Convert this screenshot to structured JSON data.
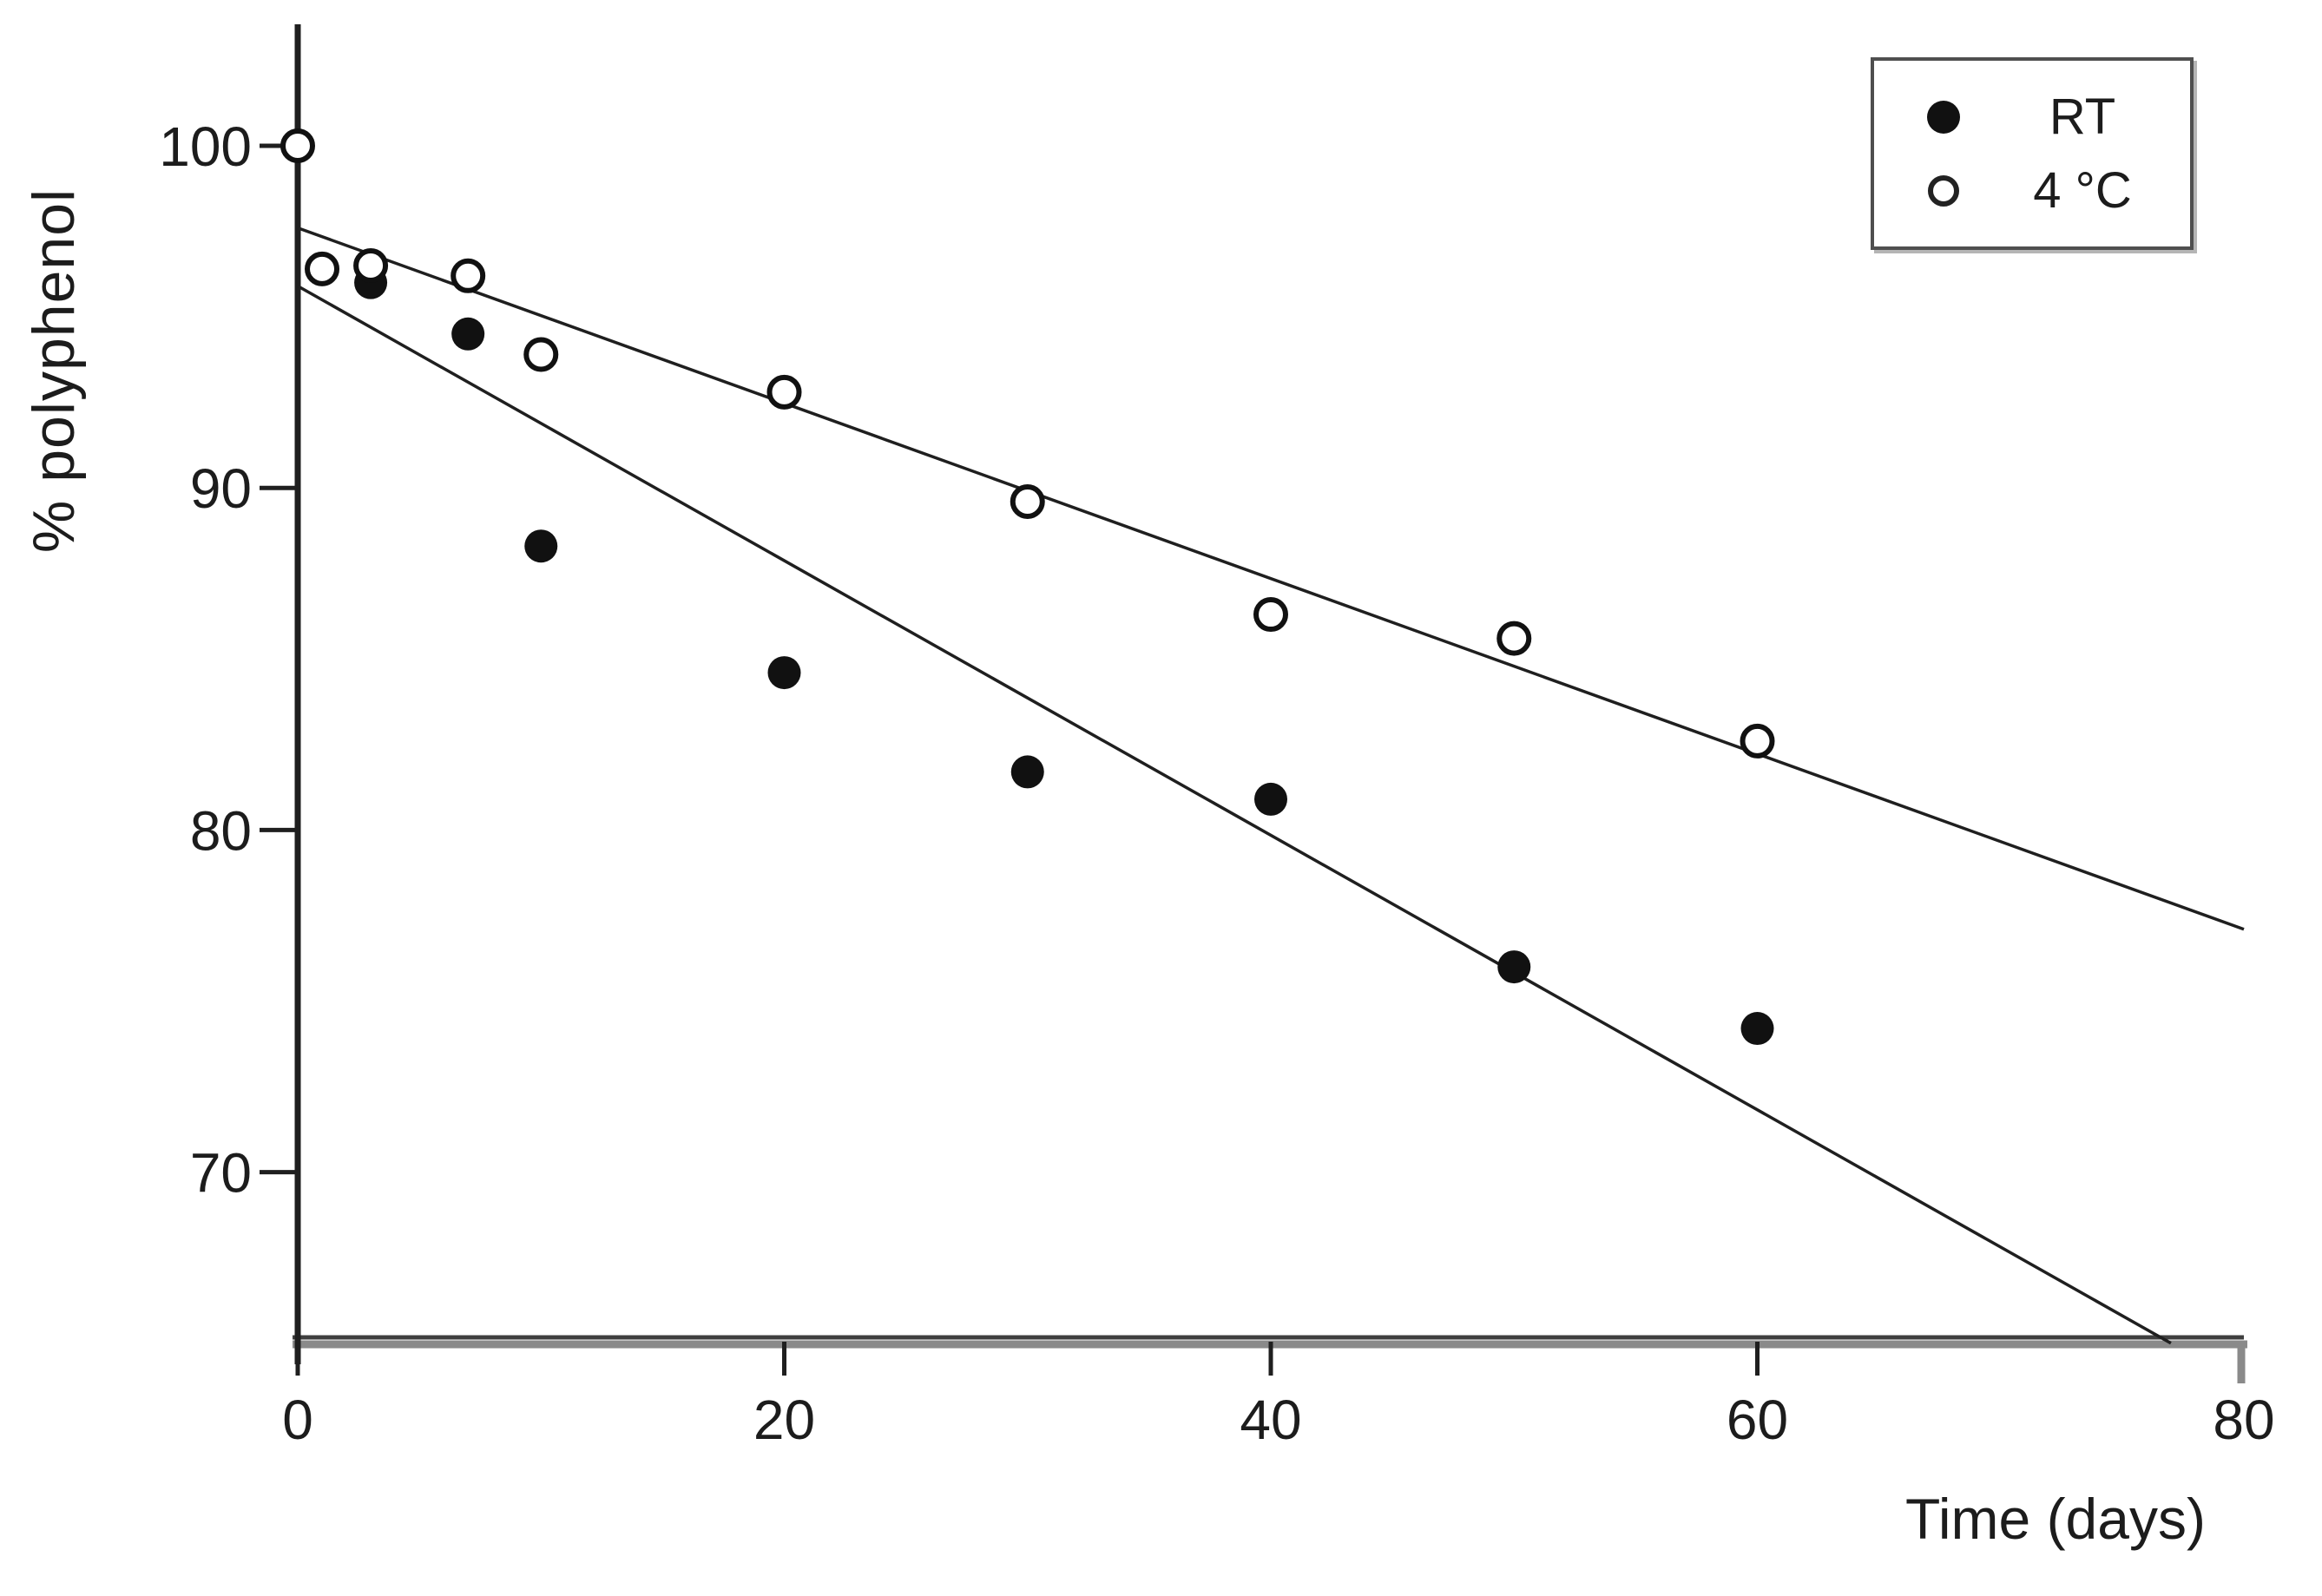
{
  "figure": {
    "background": "#ffffff",
    "axis_color": "#1f1f1f",
    "x_axis_bar_color": "#8a8a8a"
  },
  "labels": {
    "ylabel": "% polyphenol",
    "xlabel": "Time (days)"
  },
  "legend": {
    "position": "top-right",
    "items": [
      {
        "label": "RT",
        "marker": "filled-circle"
      },
      {
        "label": "4 °C",
        "marker": "open-circle"
      }
    ]
  },
  "chart_data": {
    "type": "scatter",
    "title": "",
    "xlabel": "Time (days)",
    "ylabel": "% polyphenol",
    "xlim": [
      0,
      80
    ],
    "ylim": [
      65,
      103.5
    ],
    "x_ticks": [
      0,
      20,
      40,
      60,
      80
    ],
    "y_ticks": [
      70,
      80,
      90,
      100
    ],
    "grid": false,
    "legend_position": "top-right",
    "series": [
      {
        "name": "RT",
        "marker": "filled-circle",
        "color": "#111111",
        "points": [
          [
            3,
            96.0
          ],
          [
            7,
            94.5
          ],
          [
            10,
            88.3
          ],
          [
            20,
            84.6
          ],
          [
            30,
            81.7
          ],
          [
            40,
            80.9
          ],
          [
            50,
            76.0
          ],
          [
            60,
            74.2
          ]
        ],
        "trendline": {
          "x": [
            0,
            77
          ],
          "y": [
            95.9,
            65.0
          ]
        }
      },
      {
        "name": "4 °C",
        "marker": "open-circle",
        "color": "#111111",
        "points": [
          [
            0,
            100.0
          ],
          [
            1,
            96.4
          ],
          [
            3,
            96.5
          ],
          [
            7,
            96.2
          ],
          [
            10,
            93.9
          ],
          [
            20,
            92.8
          ],
          [
            30,
            89.6
          ],
          [
            40,
            86.3
          ],
          [
            50,
            85.6
          ],
          [
            60,
            82.6
          ]
        ],
        "trendline": {
          "x": [
            0,
            80
          ],
          "y": [
            97.6,
            77.1
          ]
        }
      }
    ]
  }
}
